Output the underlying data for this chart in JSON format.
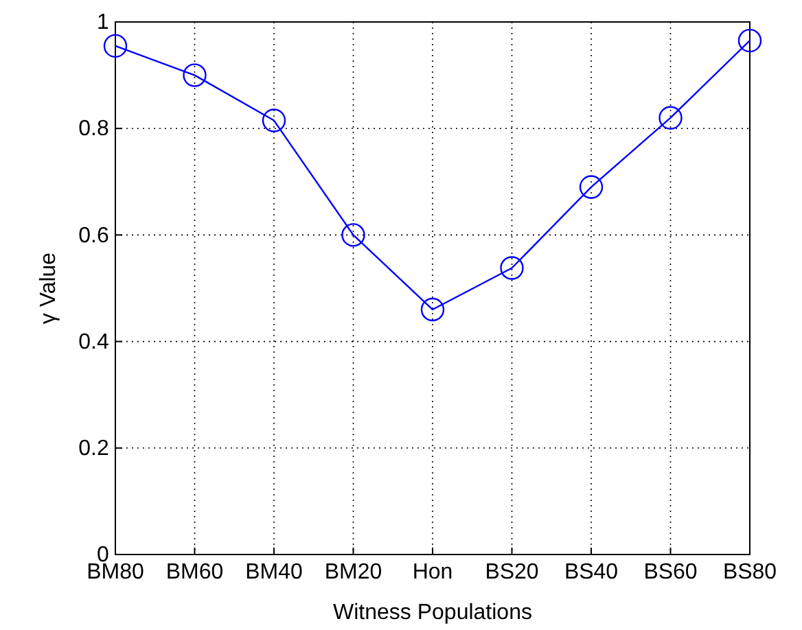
{
  "chart_data": {
    "type": "line",
    "xlabel": "Witness Populations",
    "ylabel": "γ Value",
    "categories": [
      "BM80",
      "BM60",
      "BM40",
      "BM20",
      "Hon",
      "BS20",
      "BS40",
      "BS60",
      "BS80"
    ],
    "series": [
      {
        "color": "#0000ff",
        "values": [
          0.955,
          0.9,
          0.815,
          0.6,
          0.46,
          0.538,
          0.69,
          0.82,
          0.965
        ]
      }
    ],
    "ylim": [
      0,
      1
    ],
    "yticks": [
      0,
      0.2,
      0.4,
      0.6,
      0.8,
      1
    ],
    "grid": true,
    "marker": "circle",
    "line_style": "solid"
  }
}
